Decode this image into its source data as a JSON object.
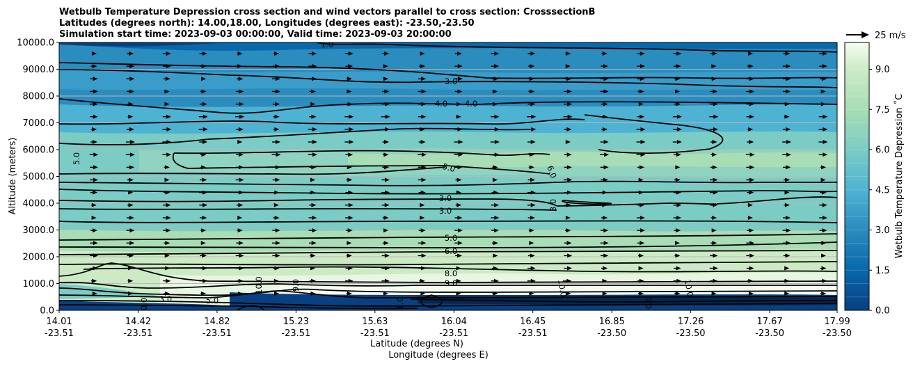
{
  "chart_data": {
    "type": "heatmap",
    "title_lines": [
      "Wetbulb Temperature Depression cross section and wind vectors parallel to cross section: CrosssectionB",
      "Latitudes (degrees north): 14.00,18.00, Longitudes (degrees east): -23.50,-23.50",
      "Simulation start time: 2023-09-03 00:00:00, Valid time: 2023-09-03 20:00:00"
    ],
    "ylabel": "Altitude (meters)",
    "xlabel_lines": [
      "Latitude (degrees N)",
      "Longitude (degrees E)"
    ],
    "ylim": [
      0,
      10000
    ],
    "y_ticks": [
      "0.0",
      "1000.0",
      "2000.0",
      "3000.0",
      "4000.0",
      "5000.0",
      "6000.0",
      "7000.0",
      "8000.0",
      "9000.0",
      "10000.0"
    ],
    "x_ticks": [
      {
        "lat": "14.01",
        "lon": "-23.51"
      },
      {
        "lat": "14.42",
        "lon": "-23.51"
      },
      {
        "lat": "14.82",
        "lon": "-23.51"
      },
      {
        "lat": "15.23",
        "lon": "-23.51"
      },
      {
        "lat": "15.63",
        "lon": "-23.51"
      },
      {
        "lat": "16.04",
        "lon": "-23.51"
      },
      {
        "lat": "16.45",
        "lon": "-23.51"
      },
      {
        "lat": "16.85",
        "lon": "-23.50"
      },
      {
        "lat": "17.26",
        "lon": "-23.50"
      },
      {
        "lat": "17.67",
        "lon": "-23.50"
      },
      {
        "lat": "17.99",
        "lon": "-23.50"
      }
    ],
    "colorbar": {
      "label": "Wetbulb Temperature Depression ˚C",
      "range": [
        0,
        10
      ],
      "ticks": [
        "0.0",
        "1.5",
        "3.0",
        "4.5",
        "6.0",
        "7.5",
        "9.0"
      ],
      "levels": 20,
      "colormap": "GnBu_r"
    },
    "quiver_key": {
      "label": "25 m/s"
    },
    "contour_labels": [
      "1.0",
      "3.0",
      "4.0",
      "4.0",
      "5.0",
      "5.0",
      "6.0",
      "3.0",
      "3.0",
      "3.0",
      "5.0",
      "6.0",
      "8.0",
      "9.0",
      "10.0",
      "10.0",
      "10.0",
      "9.0",
      "5.0",
      "3.0",
      "1.0",
      "0.0",
      "0.0"
    ],
    "grid": "horizontal"
  }
}
